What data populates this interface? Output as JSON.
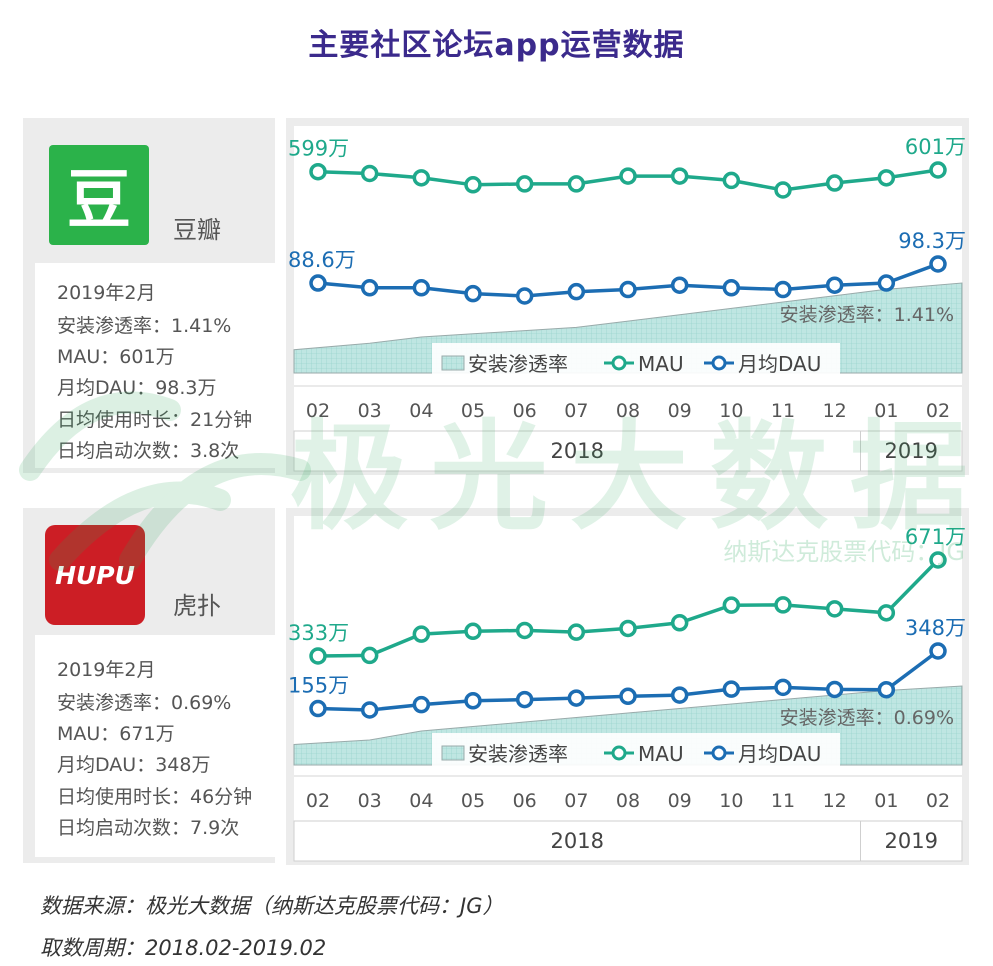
{
  "title": "主要社区论坛app运营数据",
  "watermark": {
    "brand": "极光大数据",
    "stock": "纳斯达克股票代码：JG"
  },
  "colors": {
    "mau": "#1fa98b",
    "dau": "#1c6db3",
    "title": "#3b2a8c",
    "area": "#bfe6e2"
  },
  "apps": [
    {
      "name": "豆瓣",
      "logo_text": "豆",
      "stats": [
        "2019年2月",
        "安装渗透率：1.41%",
        "MAU：601万",
        "月均DAU：98.3万",
        "日均使用时长：21分钟",
        "日均启动次数：3.8次"
      ],
      "penetration_label": "安装渗透率：1.41%"
    },
    {
      "name": "虎扑",
      "logo_text": "HUPU",
      "stats": [
        "2019年2月",
        "安装渗透率：0.69%",
        "MAU：671万",
        "月均DAU：348万",
        "日均使用时长：46分钟",
        "日均启动次数：7.9次"
      ],
      "penetration_label": "安装渗透率：0.69%"
    }
  ],
  "legend": [
    "安装渗透率",
    "MAU",
    "月均DAU"
  ],
  "chart_data": [
    {
      "type": "line",
      "categories": [
        "02",
        "03",
        "04",
        "05",
        "06",
        "07",
        "08",
        "09",
        "10",
        "11",
        "12",
        "01",
        "02"
      ],
      "year_groups": [
        {
          "label": "2018",
          "count": 11
        },
        {
          "label": "2019",
          "count": 2
        }
      ],
      "series": [
        {
          "name": "MAU",
          "values": [
            599,
            597,
            592,
            584,
            585,
            585,
            594,
            594,
            589,
            578,
            586,
            592,
            601
          ],
          "labels": {
            "first": "599万",
            "last": "601万"
          }
        },
        {
          "name": "月均DAU",
          "values": [
            88.6,
            86.2,
            86.2,
            83.2,
            82.0,
            84.2,
            85.3,
            87.5,
            86.2,
            85.3,
            87.5,
            88.6,
            98.3
          ],
          "labels": {
            "first": "88.6万",
            "last": "98.3万"
          }
        },
        {
          "name": "安装渗透率",
          "type": "area",
          "values": [
            1.2,
            1.22,
            1.24,
            1.25,
            1.26,
            1.27,
            1.29,
            1.31,
            1.33,
            1.35,
            1.37,
            1.39,
            1.41
          ]
        }
      ]
    },
    {
      "type": "line",
      "categories": [
        "02",
        "03",
        "04",
        "05",
        "06",
        "07",
        "08",
        "09",
        "10",
        "11",
        "12",
        "01",
        "02"
      ],
      "year_groups": [
        {
          "label": "2018",
          "count": 11
        },
        {
          "label": "2019",
          "count": 2
        }
      ],
      "series": [
        {
          "name": "MAU",
          "values": [
            333,
            335,
            410,
            420,
            423,
            417,
            430,
            450,
            512,
            513,
            499,
            485,
            671
          ],
          "labels": {
            "first": "333万",
            "last": "671万"
          }
        },
        {
          "name": "月均DAU",
          "values": [
            155,
            150,
            168,
            181,
            185,
            190,
            196,
            200,
            220,
            226,
            219,
            218,
            348
          ],
          "labels": {
            "first": "155万",
            "last": "348万"
          }
        },
        {
          "name": "安装渗透率",
          "type": "area",
          "values": [
            0.56,
            0.57,
            0.59,
            0.6,
            0.61,
            0.62,
            0.63,
            0.64,
            0.65,
            0.66,
            0.67,
            0.68,
            0.69
          ]
        }
      ]
    }
  ],
  "footer": {
    "source": "数据来源：极光大数据（纳斯达克股票代码：JG）",
    "period": "取数周期：2018.02-2019.02"
  }
}
